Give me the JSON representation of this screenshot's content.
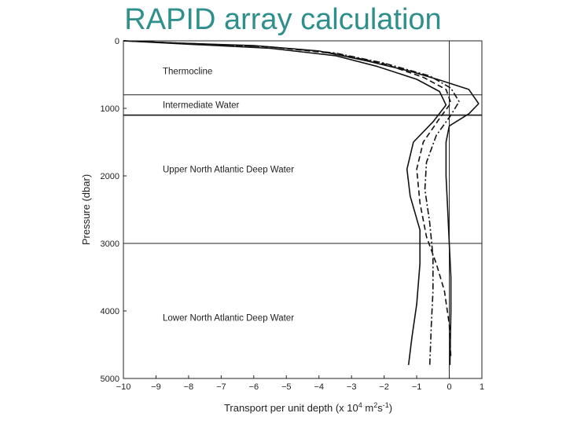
{
  "slide": {
    "title": "RAPID array calculation"
  },
  "chart_data": {
    "type": "line",
    "title": "",
    "xlabel": "Transport per unit depth (x 10",
    "xlabel_exp": "4",
    "xlabel_unit": " m",
    "xlabel_unit_exp": "2",
    "xlabel_s": "s",
    "xlabel_s_exp": "-1",
    "xlabel_close": ")",
    "ylabel": "Pressure (dbar)",
    "xlim": [
      -10,
      1
    ],
    "ylim": [
      5000,
      0
    ],
    "x_ticks": [
      -10,
      -9,
      -8,
      -7,
      -6,
      -5,
      -4,
      -3,
      -2,
      -1,
      0,
      1
    ],
    "x_tick_labels": [
      "−10",
      "−9",
      "−8",
      "−7",
      "−6",
      "−5",
      "−4",
      "−3",
      "−2",
      "−1",
      "0",
      "1"
    ],
    "y_ticks": [
      0,
      1000,
      2000,
      3000,
      4000,
      5000
    ],
    "y_tick_labels": [
      "0",
      "1000",
      "2000",
      "3000",
      "4000",
      "5000"
    ],
    "zero_line_x": 0,
    "layers": [
      {
        "name": "Thermocline",
        "label_y": 450
      },
      {
        "name": "Intermediate Water",
        "label_y": 950,
        "top": 800
      },
      {
        "name": "Upper North Atlantic Deep Water",
        "label_y": 1900,
        "top": 1100
      },
      {
        "name": "Lower North Atlantic Deep Water",
        "label_y": 4100,
        "top": 3000
      }
    ],
    "series": [
      {
        "style": "solid",
        "x": [
          -10,
          -8.5,
          -6,
          -4,
          -2.5,
          -1.2,
          -0.3,
          0.6,
          0.9,
          0.6,
          0,
          -0.1,
          -0.1,
          -0.05,
          0,
          0.05,
          0.05,
          0.02
        ],
        "y": [
          0,
          30,
          70,
          150,
          300,
          450,
          580,
          720,
          930,
          1080,
          1260,
          1500,
          2000,
          2500,
          3000,
          3500,
          4000,
          4800
        ]
      },
      {
        "style": "dash-dot",
        "x": [
          -10,
          -8,
          -5.5,
          -3.5,
          -2,
          -0.6,
          0.05,
          0.3,
          0.05,
          -0.4,
          -0.7,
          -0.75,
          -0.6,
          -0.5,
          -0.5,
          -0.55,
          -0.6
        ],
        "y": [
          0,
          40,
          90,
          180,
          330,
          520,
          700,
          900,
          1100,
          1400,
          1800,
          2200,
          2700,
          3200,
          3700,
          4200,
          4800
        ]
      },
      {
        "style": "dashed",
        "x": [
          -10,
          -8,
          -5.5,
          -3.5,
          -2,
          -0.8,
          -0.1,
          0.05,
          -0.3,
          -0.8,
          -1.0,
          -0.9,
          -0.7,
          -0.4,
          -0.15,
          0,
          0.05
        ],
        "y": [
          0,
          40,
          90,
          190,
          340,
          540,
          720,
          920,
          1150,
          1500,
          1900,
          2400,
          2900,
          3300,
          3700,
          4200,
          4700
        ]
      },
      {
        "style": "solid",
        "x": [
          -10,
          -8,
          -5.5,
          -3.5,
          -2.2,
          -1.0,
          -0.3,
          -0.1,
          -0.5,
          -1.1,
          -1.3,
          -1.2,
          -0.9,
          -0.9,
          -1.0,
          -1.15,
          -1.25
        ],
        "y": [
          0,
          50,
          110,
          220,
          380,
          570,
          750,
          950,
          1200,
          1500,
          1900,
          2300,
          2800,
          3300,
          3900,
          4400,
          4800
        ]
      }
    ]
  }
}
